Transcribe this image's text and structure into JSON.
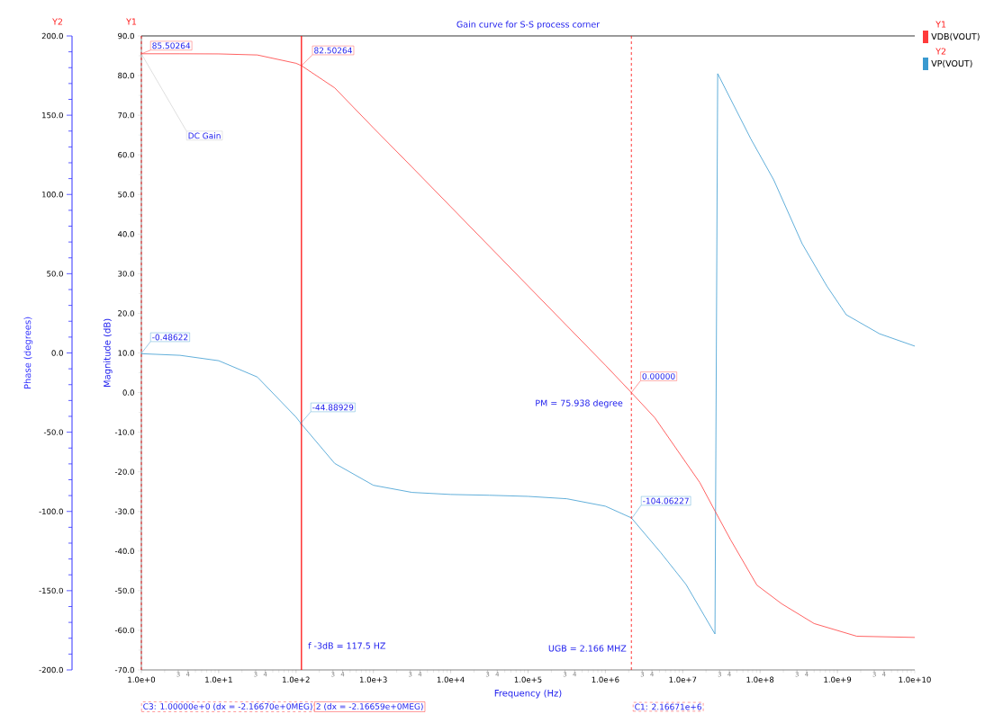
{
  "chart_data": {
    "type": "line",
    "title": "Gain curve for S-S process corner",
    "xlabel": "Frequency (Hz)",
    "ylabel": "Magnitude (dB)",
    "y2label": "Phase (degrees)",
    "log": "x",
    "legend": "right",
    "xlim": [
      1,
      10000000000
    ],
    "ylim": [
      -70,
      90
    ],
    "y2lim": [
      -200,
      200
    ],
    "xticks": [
      {
        "value": 1,
        "label": "1.0e+0"
      },
      {
        "value": 10,
        "label": "1.0e+1"
      },
      {
        "value": 100,
        "label": "1.0e+2"
      },
      {
        "value": 1000,
        "label": "1.0e+3"
      },
      {
        "value": 10000,
        "label": "1.0e+4"
      },
      {
        "value": 100000,
        "label": "1.0e+5"
      },
      {
        "value": 1000000,
        "label": "1.0e+6"
      },
      {
        "value": 10000000,
        "label": "1.0e+7"
      },
      {
        "value": 100000000,
        "label": "1.0e+8"
      },
      {
        "value": 1000000000,
        "label": "1.0e+9"
      },
      {
        "value": 10000000000,
        "label": "1.0e+10"
      },
      {
        "value": 3,
        "label": null
      },
      {
        "value": 4,
        "label": null
      },
      {
        "value": 30,
        "label": null
      },
      {
        "value": 40,
        "label": null
      },
      {
        "value": 300,
        "label": null
      },
      {
        "value": 400,
        "label": null
      },
      {
        "value": 3000,
        "label": null
      },
      {
        "value": 4000,
        "label": null
      },
      {
        "value": 30000,
        "label": null
      },
      {
        "value": 40000,
        "label": null
      },
      {
        "value": 300000,
        "label": null
      },
      {
        "value": 400000,
        "label": null
      },
      {
        "value": 3000000,
        "label": null
      },
      {
        "value": 4000000,
        "label": null
      },
      {
        "value": 30000000,
        "label": null
      },
      {
        "value": 40000000,
        "label": null
      },
      {
        "value": 300000000,
        "label": null
      },
      {
        "value": 400000000,
        "label": null
      },
      {
        "value": 3000000000,
        "label": null
      },
      {
        "value": 4000000000,
        "label": null
      }
    ],
    "yticks": [
      {
        "value": 90,
        "label": "90.0"
      },
      {
        "value": 80,
        "label": "80.0"
      },
      {
        "value": 70,
        "label": "70.0"
      },
      {
        "value": 60,
        "label": "60.0"
      },
      {
        "value": 50,
        "label": "50.0"
      },
      {
        "value": 40,
        "label": "40.0"
      },
      {
        "value": 30,
        "label": "30.0"
      },
      {
        "value": 20,
        "label": "20.0"
      },
      {
        "value": 10,
        "label": "10.0"
      },
      {
        "value": 0,
        "label": "0.0"
      },
      {
        "value": -10,
        "label": "-10.0"
      },
      {
        "value": -20,
        "label": "-20.0"
      },
      {
        "value": -30,
        "label": "-30.0"
      },
      {
        "value": -40,
        "label": "-40.0"
      },
      {
        "value": -50,
        "label": "-50.0"
      },
      {
        "value": -60,
        "label": "-60.0"
      },
      {
        "value": -70,
        "label": "-70.0"
      }
    ],
    "y2ticks": [
      {
        "value": 200,
        "label": "200.0"
      },
      {
        "value": 150,
        "label": "150.0"
      },
      {
        "value": 100,
        "label": "100.0"
      },
      {
        "value": 50,
        "label": "50.0"
      },
      {
        "value": 0,
        "label": "0.0"
      },
      {
        "value": -50,
        "label": "-50.0"
      },
      {
        "value": -100,
        "label": "-100.0"
      },
      {
        "value": -150,
        "label": "-150.0"
      },
      {
        "value": -200,
        "label": "-200.0"
      }
    ],
    "series": [
      {
        "name": "VDB(VOUT)",
        "color": "#ff3b3b",
        "x": [
          1,
          3.16,
          10,
          31.6,
          100,
          117.5,
          316,
          1000,
          3162,
          10000,
          31600,
          100000,
          316000,
          1000000,
          2166710,
          4370000,
          16600000,
          26300000,
          41700000,
          91000000,
          190000000,
          500000000,
          1780000000,
          10000000000
        ],
        "values": [
          85.50264,
          85.5,
          85.47,
          85.2,
          83.1,
          82.50264,
          76.9,
          66.8,
          56.9,
          46.9,
          36.9,
          26.9,
          16.9,
          6.9,
          0,
          -6.4,
          -22.7,
          -30,
          -37.2,
          -48.6,
          -53.3,
          -58.3,
          -61.5,
          -61.8
        ]
      },
      {
        "name": "VP(VOUT)",
        "color": "#3a9ad0",
        "axis": "y2",
        "x": [
          1,
          3.16,
          10,
          31.6,
          100,
          117.5,
          316,
          1000,
          3162,
          10000,
          31600,
          100000,
          316000,
          1000000,
          2166710,
          5200000,
          11000000,
          26100000,
          28300000,
          76000000,
          150000000,
          350000000,
          730000000,
          1300000000,
          3500000000,
          10000000000
        ],
        "values": [
          -0.48622,
          -1.5,
          -4.9,
          -15.2,
          -40.5,
          -44.88929,
          -69.7,
          -83.5,
          -88,
          -89.3,
          -89.8,
          -90.5,
          -92,
          -96.7,
          -104.06227,
          -126,
          -146,
          -177.3,
          176.2,
          135,
          109.2,
          68.9,
          42.2,
          24.1,
          12.1,
          4.3
        ]
      }
    ],
    "ref_lines": [
      {
        "axis": "x",
        "value": 1,
        "color": "#ff0000",
        "line_style": "dashed"
      },
      {
        "axis": "x",
        "value": 117.5,
        "color": "#ff0000",
        "line_style": "solid"
      },
      {
        "axis": "x",
        "value": 2166710,
        "color": "#ff0000",
        "line_style": "dashed"
      }
    ],
    "annotations": [
      {
        "text": "85.50264",
        "x": 1,
        "y": 85.50264
      },
      {
        "text": "DC Gain",
        "x": 1,
        "y": 85.50264
      },
      {
        "text": "82.50264",
        "x": 117.5,
        "y": 82.50264
      },
      {
        "text": "0.00000",
        "x": 2166710,
        "y": 0
      },
      "-0.48622",
      "-44.88929",
      "-104.06227",
      "Y2",
      "Y1",
      "f -3dB = 117.5 HZ",
      "UGB = 2.166 MHZ",
      "PM = 75.938 degree",
      "Y1",
      "Y2",
      "C3: 1.00000e+0 (dx = -2.16670e+0MEG)",
      "2 (dx = -2.16659e+0MEG)",
      "C1: 2.16671e+6",
      "3",
      "4",
      "3",
      "4",
      "3",
      "4",
      "3",
      "4",
      "3",
      "4",
      "3",
      "4",
      "3",
      "4",
      "3",
      "4",
      "3",
      "4",
      "3",
      "4"
    ]
  }
}
